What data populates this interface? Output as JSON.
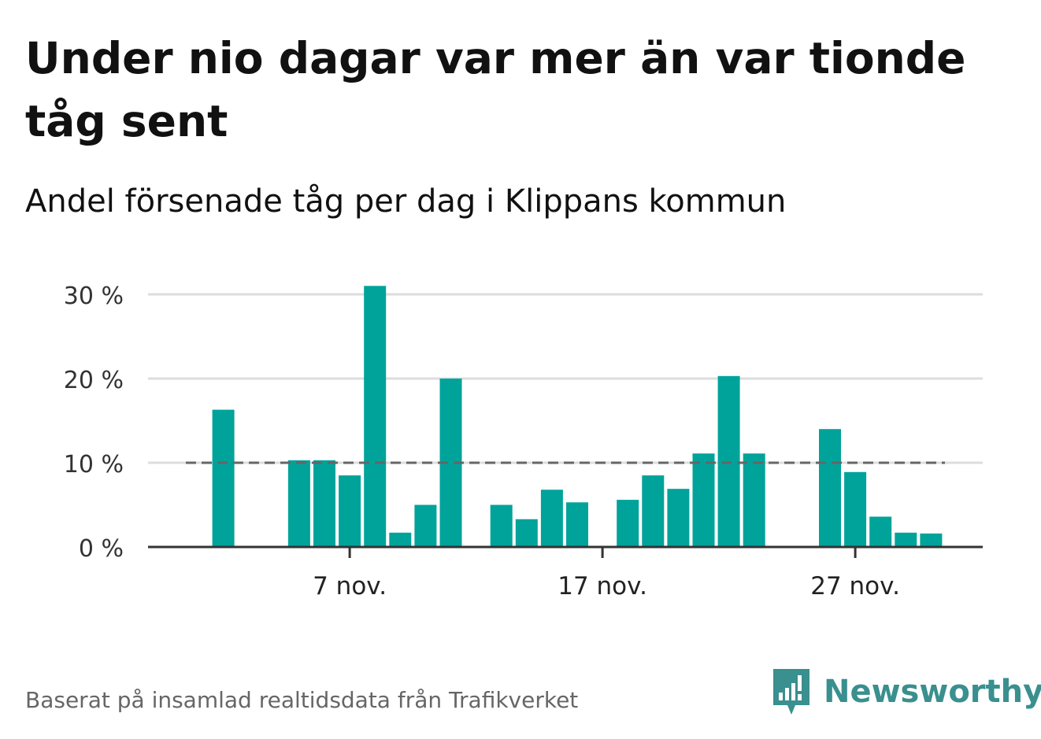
{
  "header": {
    "title": "Under nio dagar var mer än var tionde tåg sent",
    "subtitle": "Andel försenade tåg per dag i Klippans kommun"
  },
  "footer": {
    "source": "Baserat på insamlad realtidsdata från Trafikverket",
    "brand": "Newsworthy"
  },
  "chart_data": {
    "type": "bar",
    "title": "Andel försenade tåg per dag i Klippans kommun",
    "xlabel": "",
    "ylabel": "",
    "ylim": [
      0,
      30
    ],
    "y_ticks": [
      "0 %",
      "10 %",
      "20 %",
      "30 %"
    ],
    "y_tick_values": [
      0,
      10,
      20,
      30
    ],
    "x_ticks": [
      "7 nov.",
      "17 nov.",
      "27 nov."
    ],
    "x_tick_days": [
      7,
      17,
      27
    ],
    "x": [
      1,
      2,
      3,
      4,
      5,
      6,
      7,
      8,
      9,
      10,
      11,
      12,
      13,
      14,
      15,
      16,
      17,
      18,
      19,
      20,
      21,
      22,
      23,
      24,
      25,
      26,
      27,
      28,
      29,
      30,
      31
    ],
    "values": [
      null,
      16.3,
      null,
      null,
      10.3,
      10.3,
      8.5,
      31.0,
      1.7,
      5.0,
      20.0,
      null,
      5.0,
      3.3,
      6.8,
      5.3,
      null,
      5.6,
      8.5,
      6.9,
      11.1,
      20.3,
      11.1,
      null,
      null,
      14.0,
      8.9,
      3.6,
      1.7,
      1.6,
      null
    ],
    "reference_line": {
      "value": 10,
      "style": "dashed",
      "color": "#666666"
    },
    "bar_color": "#00a39a",
    "grid": true,
    "legend": "none"
  }
}
